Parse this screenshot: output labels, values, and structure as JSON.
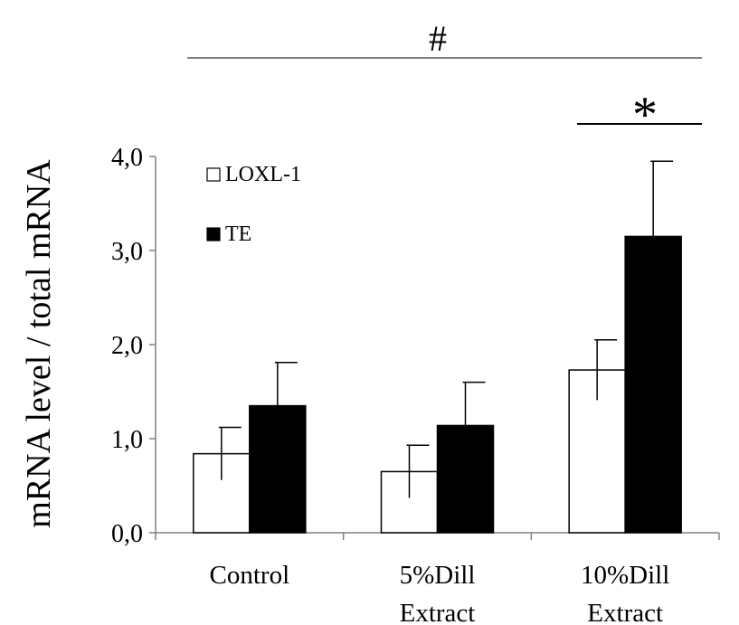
{
  "chart_data": {
    "type": "bar",
    "title": "",
    "xlabel": "",
    "ylabel": "mRNA level / total mRNA",
    "ylim": [
      0,
      4
    ],
    "yticks": [
      0,
      1,
      2,
      3,
      4
    ],
    "ytick_labels": [
      "0,0",
      "1,0",
      "2,0",
      "3,0",
      "4,0"
    ],
    "categories": [
      [
        "Control"
      ],
      [
        "5%Dill",
        "Extract"
      ],
      [
        "10%Dill",
        "Extract"
      ]
    ],
    "series": [
      {
        "name": "LOXL-1",
        "values": [
          0.84,
          0.65,
          1.73
        ],
        "errors": [
          0.28,
          0.28,
          0.32
        ],
        "fill": "#ffffff"
      },
      {
        "name": "TE",
        "values": [
          1.35,
          1.14,
          3.15
        ],
        "errors": [
          0.46,
          0.46,
          0.8
        ],
        "fill": "#000000"
      }
    ],
    "legend_position": "top-left",
    "grid": false,
    "annotations": [
      {
        "text": "#",
        "spans": "all-groups"
      },
      {
        "text": "*",
        "spans": "group-3"
      }
    ],
    "colors": {
      "axis": "#808080",
      "bar_stroke": "#000000",
      "sig_line": "#000000"
    }
  }
}
